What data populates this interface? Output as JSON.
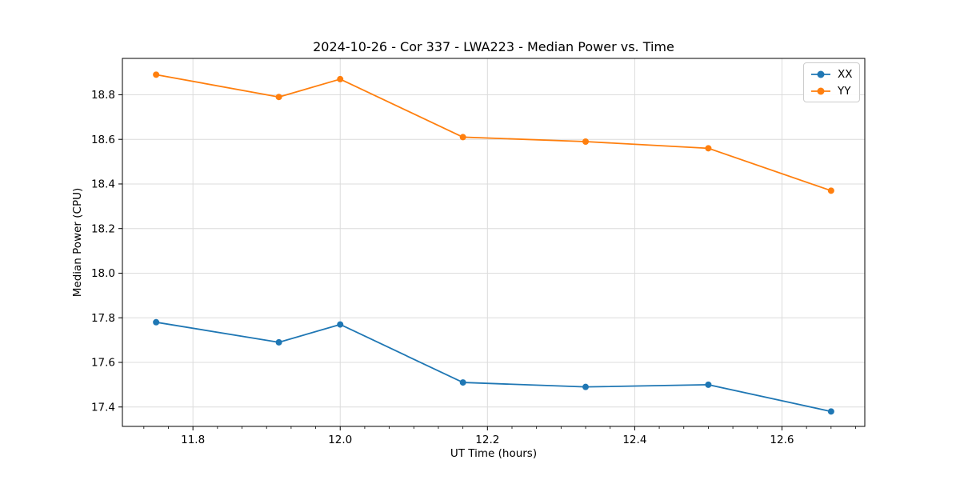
{
  "chart_data": {
    "type": "line",
    "title": "2024-10-26 - Cor 337 - LWA223 - Median Power vs. Time",
    "xlabel": "UT Time (hours)",
    "ylabel": "Median Power (CPU)",
    "x": [
      11.75,
      11.9167,
      12.0,
      12.1667,
      12.3333,
      12.5,
      12.6667
    ],
    "series": [
      {
        "name": "XX",
        "color": "#1f77b4",
        "values": [
          17.78,
          17.69,
          17.77,
          17.51,
          17.49,
          17.5,
          17.38
        ]
      },
      {
        "name": "YY",
        "color": "#ff7f0e",
        "values": [
          18.89,
          18.79,
          18.87,
          18.61,
          18.59,
          18.56,
          18.37
        ]
      }
    ],
    "xlim": [
      11.7042,
      12.7125
    ],
    "ylim": [
      17.313,
      18.963
    ],
    "xticks": [
      11.8,
      12.0,
      12.2,
      12.4,
      12.6
    ],
    "xtick_labels": [
      "11.8",
      "12.0",
      "12.2",
      "12.4",
      "12.6"
    ],
    "x_minor_step": 0.0333333,
    "yticks": [
      17.4,
      17.6,
      17.8,
      18.0,
      18.2,
      18.4,
      18.6,
      18.8
    ],
    "ytick_labels": [
      "17.4",
      "17.6",
      "17.8",
      "18.0",
      "18.2",
      "18.4",
      "18.6",
      "18.8"
    ],
    "grid": true,
    "grid_color": "#dcdcdc",
    "marker": "o",
    "line_width": 1.8,
    "marker_radius": 4,
    "legend": {
      "position": "upper right",
      "entries": [
        "XX",
        "YY"
      ]
    }
  }
}
